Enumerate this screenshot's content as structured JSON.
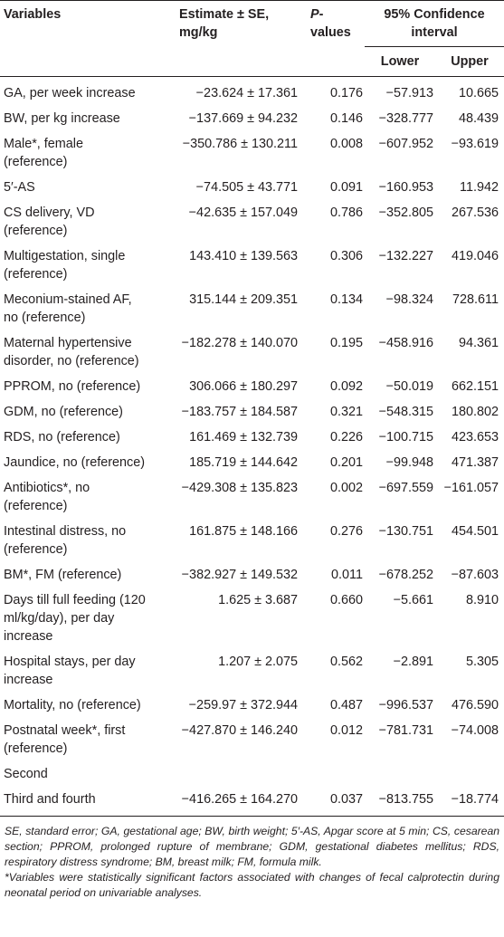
{
  "header": {
    "variables": "Variables",
    "estimate": "Estimate ± SE, mg/kg",
    "p_values_p": "P",
    "p_values_rest": "-values",
    "ci": "95% Confidence interval",
    "lower": "Lower",
    "upper": "Upper"
  },
  "rows": [
    {
      "variable": "GA, per week increase",
      "estimate": "−23.624 ± 17.361",
      "p": "0.176",
      "lower": "−57.913",
      "upper": "10.665"
    },
    {
      "variable": "BW, per kg increase",
      "estimate": "−137.669 ± 94.232",
      "p": "0.146",
      "lower": "−328.777",
      "upper": "48.439"
    },
    {
      "variable": "Male*, female (reference)",
      "estimate": "−350.786 ± 130.211",
      "p": "0.008",
      "lower": "−607.952",
      "upper": "−93.619"
    },
    {
      "variable": "5′-AS",
      "estimate": "−74.505 ± 43.771",
      "p": "0.091",
      "lower": "−160.953",
      "upper": "11.942"
    },
    {
      "variable": "CS delivery, VD (reference)",
      "estimate": "−42.635 ± 157.049",
      "p": "0.786",
      "lower": "−352.805",
      "upper": "267.536"
    },
    {
      "variable": "Multigestation, single (reference)",
      "estimate": "143.410 ± 139.563",
      "p": "0.306",
      "lower": "−132.227",
      "upper": "419.046"
    },
    {
      "variable": "Meconium-stained AF, no (reference)",
      "estimate": "315.144 ± 209.351",
      "p": "0.134",
      "lower": "−98.324",
      "upper": "728.611"
    },
    {
      "variable": "Maternal hypertensive disorder, no (reference)",
      "estimate": "−182.278 ± 140.070",
      "p": "0.195",
      "lower": "−458.916",
      "upper": "94.361"
    },
    {
      "variable": "PPROM, no (reference)",
      "estimate": "306.066 ± 180.297",
      "p": "0.092",
      "lower": "−50.019",
      "upper": "662.151"
    },
    {
      "variable": "GDM, no (reference)",
      "estimate": "−183.757 ± 184.587",
      "p": "0.321",
      "lower": "−548.315",
      "upper": "180.802"
    },
    {
      "variable": "RDS, no (reference)",
      "estimate": "161.469 ± 132.739",
      "p": "0.226",
      "lower": "−100.715",
      "upper": "423.653"
    },
    {
      "variable": "Jaundice, no (reference)",
      "estimate": "185.719 ± 144.642",
      "p": "0.201",
      "lower": "−99.948",
      "upper": "471.387"
    },
    {
      "variable": "Antibiotics*, no (reference)",
      "estimate": "−429.308 ± 135.823",
      "p": "0.002",
      "lower": "−697.559",
      "upper": "−161.057"
    },
    {
      "variable": "Intestinal distress, no (reference)",
      "estimate": "161.875 ± 148.166",
      "p": "0.276",
      "lower": "−130.751",
      "upper": "454.501"
    },
    {
      "variable": "BM*, FM (reference)",
      "estimate": "−382.927 ± 149.532",
      "p": "0.011",
      "lower": "−678.252",
      "upper": "−87.603"
    },
    {
      "variable": "Days till full feeding (120 ml/kg/day), per day increase",
      "estimate": "1.625 ± 3.687",
      "p": "0.660",
      "lower": "−5.661",
      "upper": "8.910"
    },
    {
      "variable": "Hospital stays, per day increase",
      "estimate": "1.207 ± 2.075",
      "p": "0.562",
      "lower": "−2.891",
      "upper": "5.305"
    },
    {
      "variable": "Mortality, no (reference)",
      "estimate": "−259.97 ± 372.944",
      "p": "0.487",
      "lower": "−996.537",
      "upper": "476.590"
    },
    {
      "variable": "Postnatal week*, first (reference)",
      "estimate": "−427.870 ± 146.240",
      "p": "0.012",
      "lower": "−781.731",
      "upper": "−74.008"
    },
    {
      "variable": "Second",
      "estimate": "",
      "p": "",
      "lower": "",
      "upper": ""
    },
    {
      "variable": "Third and fourth",
      "estimate": "−416.265 ± 164.270",
      "p": "0.037",
      "lower": "−813.755",
      "upper": "−18.774"
    }
  ],
  "footnotes": {
    "abbreviations": "SE, standard error; GA, gestational age; BW, birth weight; 5′-AS, Apgar score at 5 min; CS, cesarean section; PPROM, prolonged rupture of membrane; GDM, gestational diabetes mellitus; RDS, respiratory distress syndrome; BM, breast milk; FM, formula milk.",
    "significance": "*Variables were statistically significant factors associated with changes of fecal calprotectin during neonatal period on univariable analyses."
  }
}
